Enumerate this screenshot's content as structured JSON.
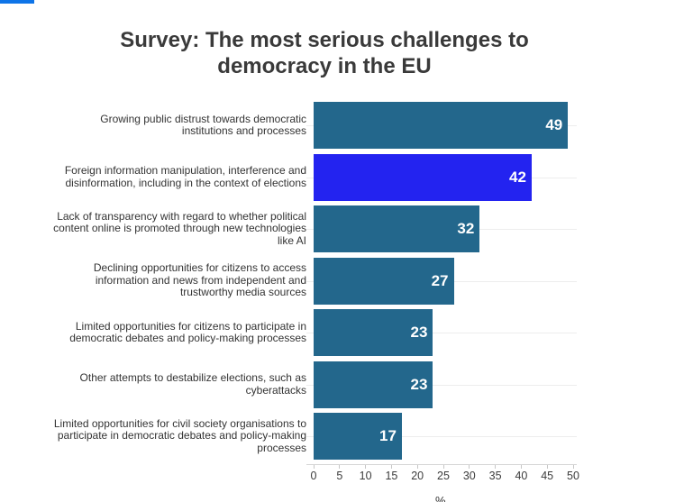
{
  "page": {
    "accent_color": "#0e74e8"
  },
  "header": {
    "title_line1": "Survey: The most serious challenges to",
    "title_line2": "democracy in the EU"
  },
  "chart_data": {
    "type": "bar",
    "orientation": "horizontal",
    "title": "Survey: The most serious challenges to democracy in the EU",
    "categories": [
      "Growing public distrust towards democratic institutions and processes",
      "Foreign information manipulation, interference and disinformation, including in the context of elections",
      "Lack of transparency with regard to whether political content online is promoted through new technologies like AI",
      "Declining opportunities for citizens to access information and news from independent and trustworthy media sources",
      "Limited opportunities for citizens to participate in democratic debates and policy-making processes",
      "Other attempts to destabilize elections, such as cyberattacks",
      "Limited opportunities for civil society organisations to participate in democratic debates and policy-making processes"
    ],
    "values": [
      49,
      42,
      32,
      27,
      23,
      23,
      17
    ],
    "value_label_position": "inside-end",
    "xlabel": "%",
    "xlim": [
      0,
      50
    ],
    "ticks": [
      0,
      5,
      10,
      15,
      20,
      25,
      30,
      35,
      40,
      45,
      50
    ],
    "grid": true,
    "legend": "none",
    "bar_color": "#23678c",
    "highlight_color": "#2323f0",
    "highlight_index": 1
  }
}
